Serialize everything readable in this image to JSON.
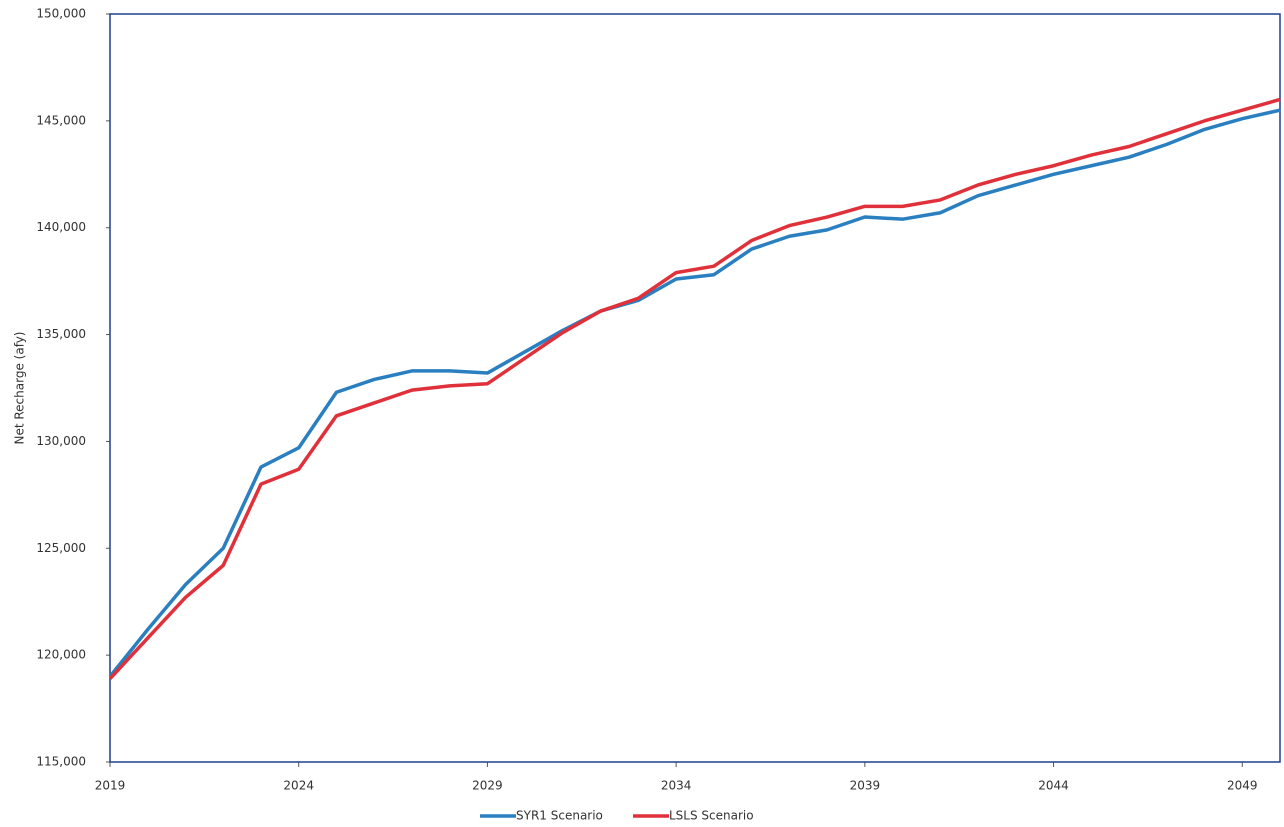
{
  "chart_data": {
    "type": "line",
    "y_label": "Net Recharge (afy)",
    "x": [
      2019,
      2020,
      2021,
      2022,
      2023,
      2024,
      2025,
      2026,
      2027,
      2028,
      2029,
      2030,
      2031,
      2032,
      2033,
      2034,
      2035,
      2036,
      2037,
      2038,
      2039,
      2040,
      2041,
      2042,
      2043,
      2044,
      2045,
      2046,
      2047,
      2048,
      2049,
      2050
    ],
    "series": [
      {
        "name": "SYR1 Scenario",
        "color": "#2a7fc1",
        "values": [
          119000,
          121200,
          123300,
          125000,
          128800,
          129700,
          132300,
          132900,
          133300,
          133300,
          133200,
          134200,
          135200,
          136100,
          136600,
          137600,
          137800,
          139000,
          139600,
          139900,
          140500,
          140400,
          140700,
          141500,
          142000,
          142500,
          142900,
          143300,
          143900,
          144600,
          145100,
          145500
        ]
      },
      {
        "name": "LSLS Scenario",
        "color": "#e0303a",
        "values": [
          118900,
          120800,
          122700,
          124200,
          128000,
          128700,
          131200,
          131800,
          132400,
          132600,
          132700,
          133900,
          135100,
          136100,
          136700,
          137900,
          138200,
          139400,
          140100,
          140500,
          141000,
          141000,
          141300,
          142000,
          142500,
          142900,
          143400,
          143800,
          144400,
          145000,
          145500,
          146000
        ]
      }
    ],
    "xlim": [
      2019,
      2050
    ],
    "xticks": [
      2019,
      2024,
      2029,
      2034,
      2039,
      2044,
      2049
    ],
    "ylim": [
      115000,
      150000
    ],
    "yticks": [
      {
        "value": 115000,
        "label": "115,000"
      },
      {
        "value": 120000,
        "label": "120,000"
      },
      {
        "value": 125000,
        "label": "125,000"
      },
      {
        "value": 130000,
        "label": "130,000"
      },
      {
        "value": 135000,
        "label": "135,000"
      },
      {
        "value": 140000,
        "label": "140,000"
      },
      {
        "value": 145000,
        "label": "145,000"
      },
      {
        "value": 150000,
        "label": "150,000"
      }
    ],
    "grid": false,
    "legend": "bottom"
  }
}
